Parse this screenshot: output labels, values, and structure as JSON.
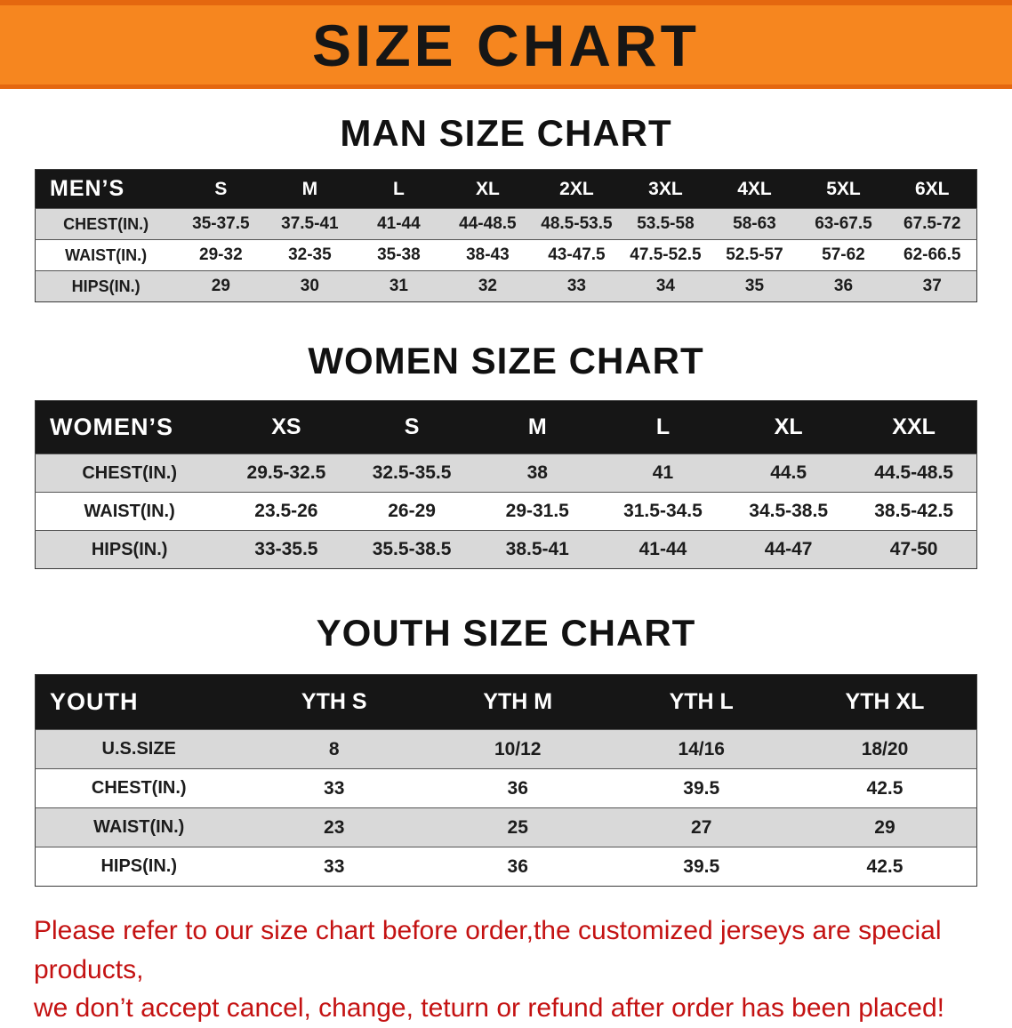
{
  "colors": {
    "banner_orange": "#f6861f",
    "banner_border": "#e4670f",
    "table_header_black": "#161616",
    "stripe_gray": "#d9d9d9",
    "disclaimer_red": "#c41212"
  },
  "banner": {
    "title": "SIZE CHART"
  },
  "sections": [
    {
      "id": "men",
      "heading": "MAN SIZE CHART",
      "table": {
        "header": [
          "MEN’S",
          "S",
          "M",
          "L",
          "XL",
          "2XL",
          "3XL",
          "4XL",
          "5XL",
          "6XL"
        ],
        "rows": [
          [
            "CHEST(IN.)",
            "35-37.5",
            "37.5-41",
            "41-44",
            "44-48.5",
            "48.5-53.5",
            "53.5-58",
            "58-63",
            "63-67.5",
            "67.5-72"
          ],
          [
            "WAIST(IN.)",
            "29-32",
            "32-35",
            "35-38",
            "38-43",
            "43-47.5",
            "47.5-52.5",
            "52.5-57",
            "57-62",
            "62-66.5"
          ],
          [
            "HIPS(IN.)",
            "29",
            "30",
            "31",
            "32",
            "33",
            "34",
            "35",
            "36",
            "37"
          ]
        ]
      }
    },
    {
      "id": "women",
      "heading": "WOMEN SIZE CHART",
      "table": {
        "header": [
          "WOMEN’S",
          "XS",
          "S",
          "M",
          "L",
          "XL",
          "XXL"
        ],
        "rows": [
          [
            "CHEST(IN.)",
            "29.5-32.5",
            "32.5-35.5",
            "38",
            "41",
            "44.5",
            "44.5-48.5"
          ],
          [
            "WAIST(IN.)",
            "23.5-26",
            "26-29",
            "29-31.5",
            "31.5-34.5",
            "34.5-38.5",
            "38.5-42.5"
          ],
          [
            "HIPS(IN.)",
            "33-35.5",
            "35.5-38.5",
            "38.5-41",
            "41-44",
            "44-47",
            "47-50"
          ]
        ]
      }
    },
    {
      "id": "youth",
      "heading": "YOUTH SIZE CHART",
      "table": {
        "header": [
          "YOUTH",
          "YTH S",
          "YTH M",
          "YTH L",
          "YTH XL"
        ],
        "rows": [
          [
            "U.S.SIZE",
            "8",
            "10/12",
            "14/16",
            "18/20"
          ],
          [
            "CHEST(IN.)",
            "33",
            "36",
            "39.5",
            "42.5"
          ],
          [
            "WAIST(IN.)",
            "23",
            "25",
            "27",
            "29"
          ],
          [
            "HIPS(IN.)",
            "33",
            "36",
            "39.5",
            "42.5"
          ]
        ]
      }
    }
  ],
  "disclaimer": {
    "lines": [
      "Please refer to our size chart before order,the customized jerseys are special products,",
      "we don’t accept cancel, change, teturn or refund after order has been placed!"
    ]
  }
}
